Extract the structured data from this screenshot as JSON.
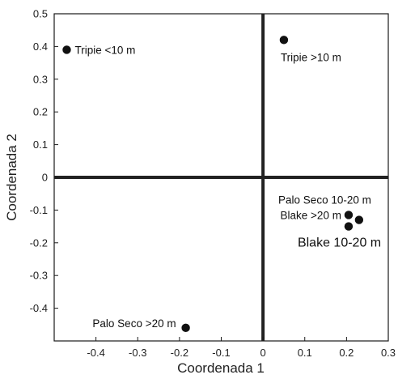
{
  "chart_data": {
    "type": "scatter",
    "title": "",
    "xlabel": "Coordenada 1",
    "ylabel": "Coordenada 2",
    "xlim": [
      -0.5,
      0.3
    ],
    "ylim": [
      -0.5,
      0.5
    ],
    "x_ticks": [
      "-0.4",
      "-0.3",
      "-0.2",
      "-0.1",
      "0",
      "0.1",
      "0.2",
      "0.3"
    ],
    "y_ticks": [
      "0.5",
      "0.4",
      "0.3",
      "0.2",
      "0.1",
      "0",
      "-0.1",
      "-0.2",
      "-0.3",
      "-0.4"
    ],
    "grid": false,
    "points": [
      {
        "label": "Tripie <10 m",
        "x": -0.47,
        "y": 0.39
      },
      {
        "label": "Tripie >10 m",
        "x": 0.05,
        "y": 0.42
      },
      {
        "label": "Palo Seco 10-20 m",
        "x": 0.23,
        "y": -0.13
      },
      {
        "label": "Blake >20 m",
        "x": 0.205,
        "y": -0.115
      },
      {
        "label": "Blake 10-20 m",
        "x": 0.205,
        "y": -0.15
      },
      {
        "label": "Palo Seco >20 m",
        "x": -0.185,
        "y": -0.46
      }
    ]
  }
}
